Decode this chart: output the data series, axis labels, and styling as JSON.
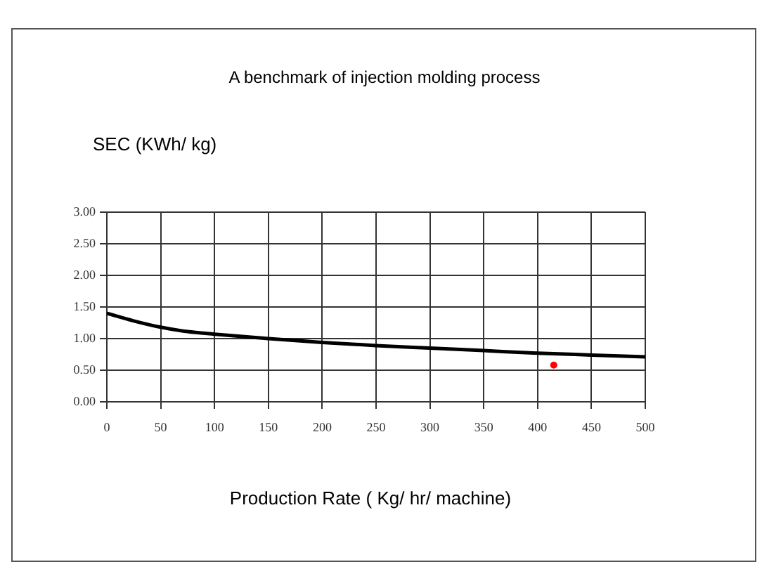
{
  "chart_data": {
    "type": "line",
    "title": "A benchmark of injection molding process",
    "ylabel": "SEC (KWh/ kg)",
    "xlabel": "Production Rate ( Kg/ hr/ machine)",
    "series": [
      {
        "color": "#000000",
        "marker": "none",
        "x": [
          0,
          25,
          50,
          75,
          100,
          150,
          200,
          250,
          300,
          350,
          400,
          450,
          500
        ],
        "values": [
          1.4,
          1.28,
          1.18,
          1.11,
          1.07,
          1.0,
          0.94,
          0.89,
          0.85,
          0.81,
          0.77,
          0.74,
          0.71
        ]
      },
      {
        "type": "scatter",
        "marker": "circle",
        "color": "#ff0000",
        "x": [
          415
        ],
        "values": [
          0.58
        ]
      }
    ],
    "xlim": [
      0,
      500
    ],
    "xticks": [
      0,
      50,
      100,
      150,
      200,
      250,
      300,
      350,
      400,
      450,
      500
    ],
    "ylim": [
      0,
      3
    ],
    "yticks": [
      {
        "value": 0,
        "label": "0.00"
      },
      {
        "value": 0.5,
        "label": "0.50"
      },
      {
        "value": 1,
        "label": "1.00"
      },
      {
        "value": 1.5,
        "label": "1.50"
      },
      {
        "value": 2,
        "label": "2.00"
      },
      {
        "value": 2.5,
        "label": "2.50"
      },
      {
        "value": 3,
        "label": "3.00"
      }
    ],
    "grid": true,
    "legend": false,
    "line_style": "solid"
  }
}
